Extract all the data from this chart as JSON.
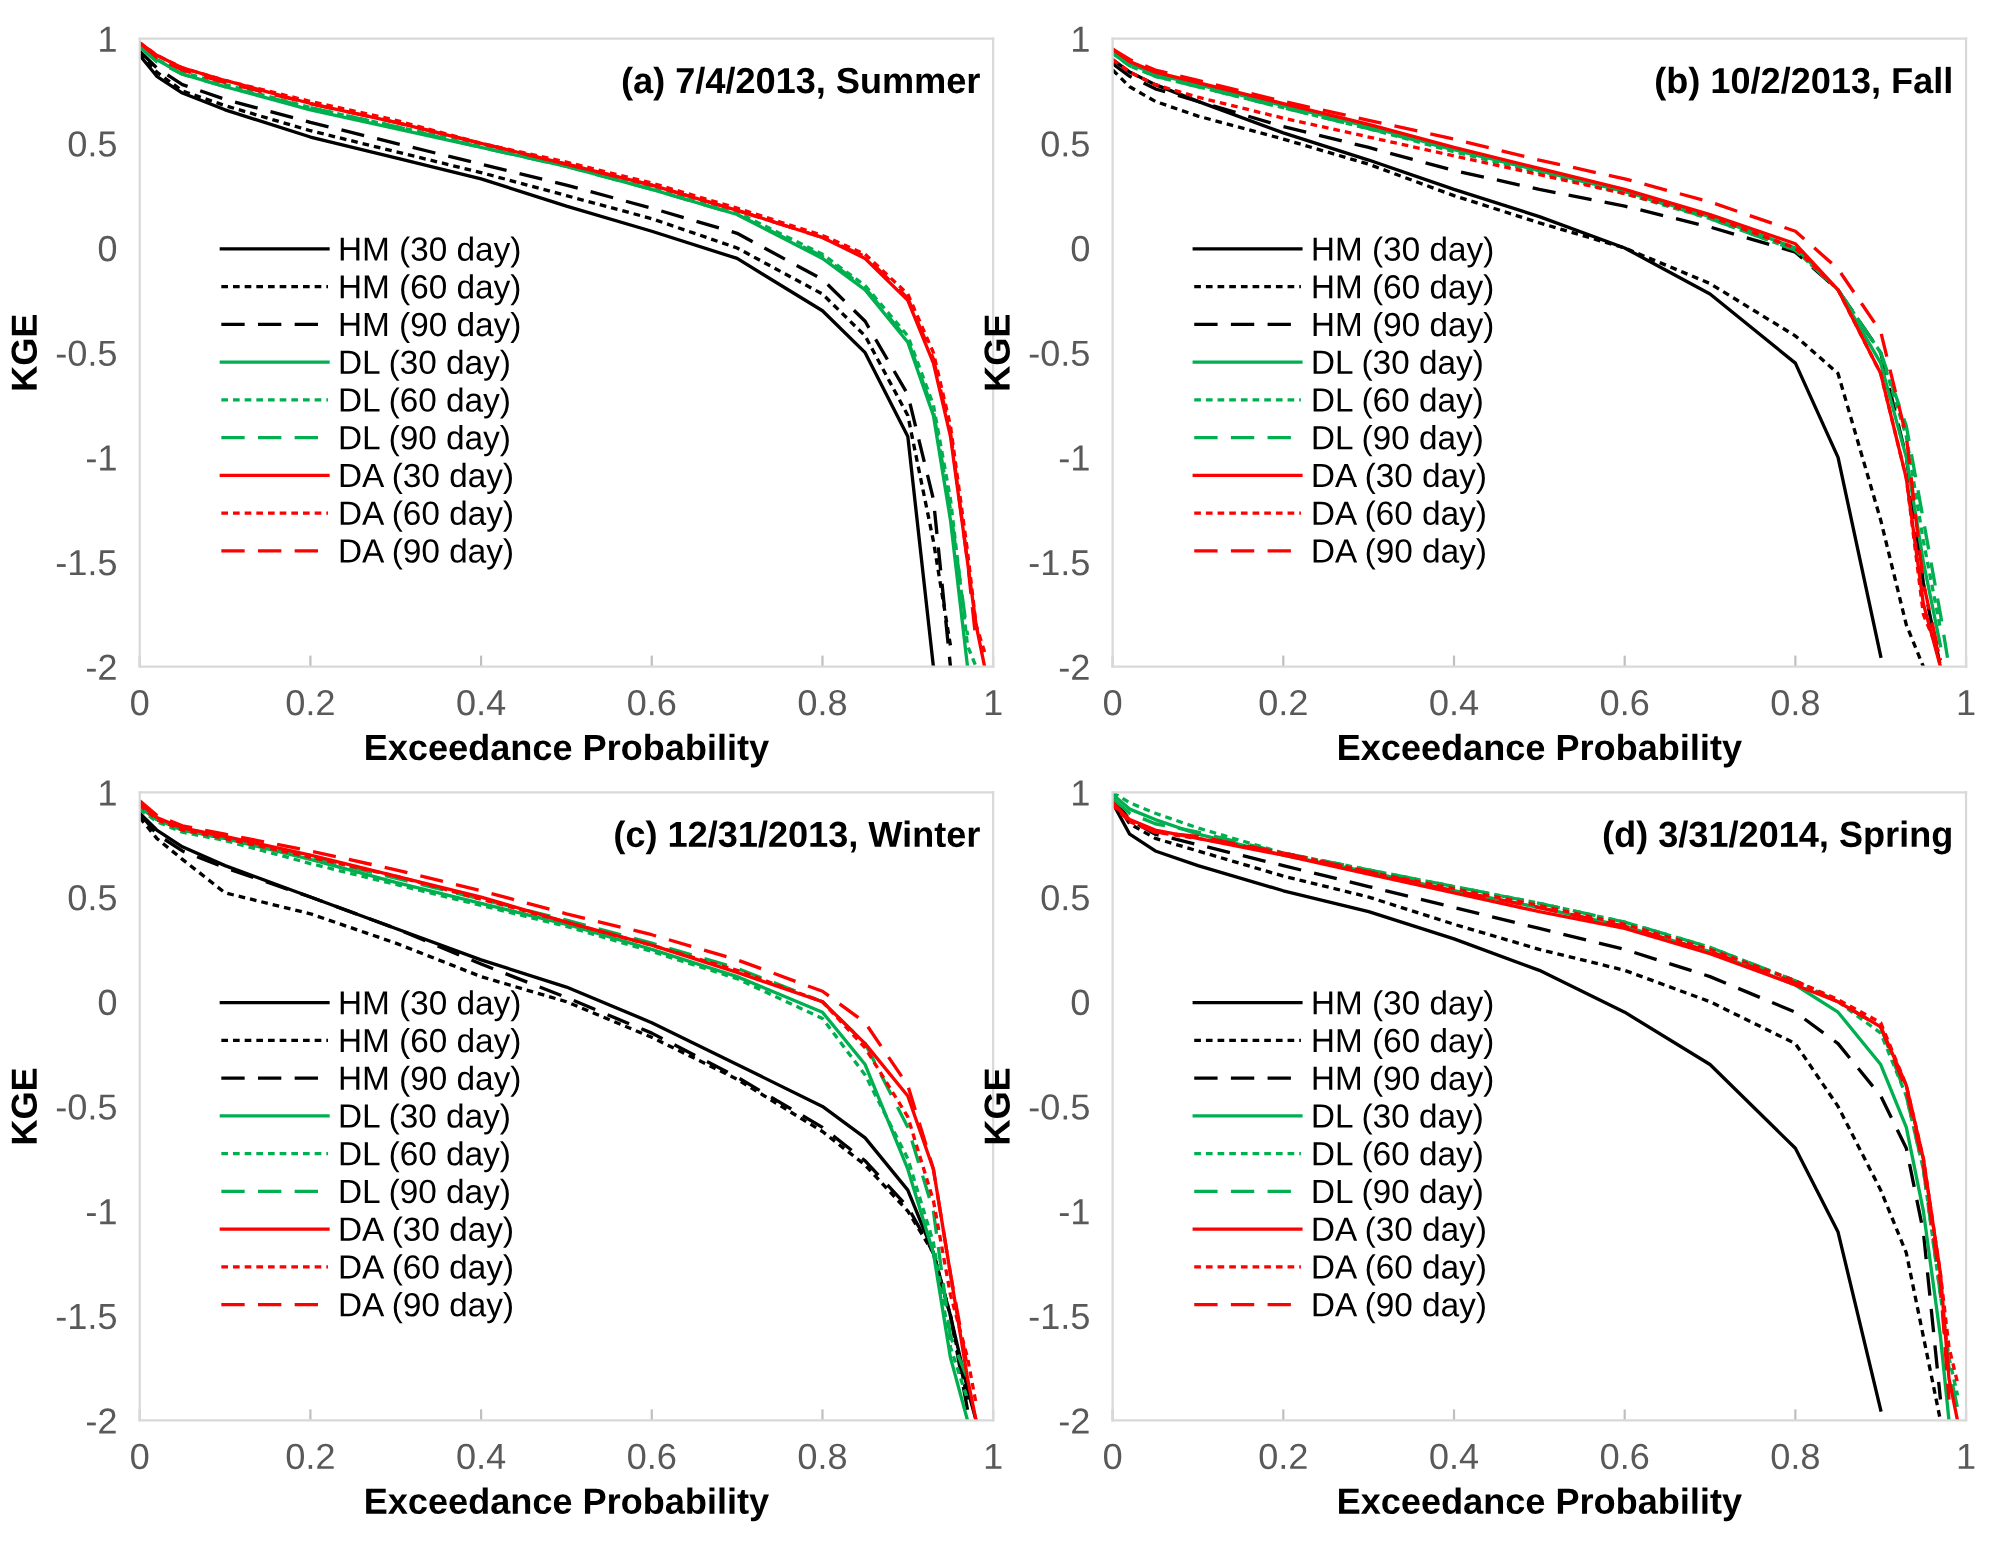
{
  "chart_data": [
    {
      "type": "line",
      "title": "(a) 7/4/2013, Summer",
      "xlabel": "Exceedance Probability",
      "ylabel": "KGE",
      "xlim": [
        0,
        1
      ],
      "ylim": [
        -2,
        1
      ],
      "xticks": [
        0,
        0.2,
        0.4,
        0.6,
        0.8,
        1
      ],
      "yticks": [
        -2,
        -1.5,
        -1,
        -0.5,
        0,
        0.5,
        1
      ],
      "legend": "left",
      "grid": false,
      "x": [
        0,
        0.02,
        0.05,
        0.1,
        0.2,
        0.3,
        0.4,
        0.5,
        0.6,
        0.7,
        0.8,
        0.85,
        0.9,
        0.93,
        0.95,
        0.97,
        0.98,
        0.99
      ],
      "series": [
        {
          "name": "HM (30 day)",
          "color": "#000000",
          "line_style": "solid",
          "values": [
            0.92,
            0.82,
            0.74,
            0.66,
            0.53,
            0.43,
            0.33,
            0.2,
            0.08,
            -0.05,
            -0.3,
            -0.5,
            -0.9,
            -2,
            null,
            null,
            null,
            null
          ]
        },
        {
          "name": "HM (60 day)",
          "color": "#000000",
          "line_style": "dotted",
          "values": [
            0.93,
            0.84,
            0.75,
            0.68,
            0.56,
            0.46,
            0.36,
            0.25,
            0.14,
            0.0,
            -0.22,
            -0.42,
            -0.8,
            -1.4,
            -1.9,
            null,
            null,
            null
          ]
        },
        {
          "name": "HM (90 day)",
          "color": "#000000",
          "line_style": "dashed",
          "values": [
            0.94,
            0.86,
            0.78,
            0.71,
            0.6,
            0.5,
            0.4,
            0.3,
            0.19,
            0.07,
            -0.15,
            -0.35,
            -0.7,
            -1.2,
            -2,
            null,
            null,
            null
          ]
        },
        {
          "name": "DL (30 day)",
          "color": "#00b050",
          "line_style": "solid",
          "values": [
            0.97,
            0.9,
            0.83,
            0.77,
            0.66,
            0.57,
            0.48,
            0.39,
            0.28,
            0.16,
            -0.05,
            -0.2,
            -0.45,
            -0.8,
            -1.3,
            -2,
            null,
            null
          ]
        },
        {
          "name": "DL (60 day)",
          "color": "#00b050",
          "line_style": "dotted",
          "values": [
            0.96,
            0.9,
            0.84,
            0.78,
            0.67,
            0.58,
            0.49,
            0.4,
            0.29,
            0.17,
            -0.03,
            -0.18,
            -0.42,
            -0.75,
            -1.2,
            -1.9,
            -2,
            null
          ]
        },
        {
          "name": "DL (90 day)",
          "color": "#00b050",
          "line_style": "dashed",
          "values": [
            0.96,
            0.89,
            0.83,
            0.77,
            0.67,
            0.58,
            0.48,
            0.39,
            0.28,
            0.16,
            -0.04,
            -0.19,
            -0.44,
            -0.78,
            -1.25,
            -1.85,
            null,
            null
          ]
        },
        {
          "name": "DA (30 day)",
          "color": "#ff0000",
          "line_style": "solid",
          "values": [
            0.98,
            0.92,
            0.86,
            0.8,
            0.69,
            0.6,
            0.5,
            0.4,
            0.3,
            0.18,
            0.05,
            -0.05,
            -0.25,
            -0.55,
            -0.9,
            -1.5,
            -1.8,
            -2
          ]
        },
        {
          "name": "DA (60 day)",
          "color": "#ff0000",
          "line_style": "dotted",
          "values": [
            0.98,
            0.92,
            0.86,
            0.8,
            0.7,
            0.61,
            0.5,
            0.41,
            0.31,
            0.19,
            0.06,
            -0.03,
            -0.22,
            -0.5,
            -0.85,
            -1.45,
            -1.8,
            -1.93
          ]
        },
        {
          "name": "DA (90 day)",
          "color": "#ff0000",
          "line_style": "dashed",
          "values": [
            0.98,
            0.91,
            0.85,
            0.79,
            0.69,
            0.6,
            0.5,
            0.4,
            0.3,
            0.18,
            0.05,
            -0.04,
            -0.24,
            -0.53,
            -0.88,
            -1.5,
            -1.88,
            null
          ]
        }
      ]
    },
    {
      "type": "line",
      "title": "(b) 10/2/2013, Fall",
      "xlabel": "Exceedance Probability",
      "ylabel": "KGE",
      "xlim": [
        0,
        1
      ],
      "ylim": [
        -2,
        1
      ],
      "xticks": [
        0,
        0.2,
        0.4,
        0.6,
        0.8,
        1
      ],
      "yticks": [
        -2,
        -1.5,
        -1,
        -0.5,
        0,
        0.5,
        1
      ],
      "legend": "left",
      "grid": false,
      "x": [
        0,
        0.02,
        0.05,
        0.1,
        0.2,
        0.3,
        0.4,
        0.5,
        0.6,
        0.7,
        0.8,
        0.85,
        0.9,
        0.93,
        0.95,
        0.97,
        0.98
      ],
      "series": [
        {
          "name": "HM (30 day)",
          "color": "#000000",
          "line_style": "solid",
          "values": [
            0.9,
            0.84,
            0.78,
            0.7,
            0.55,
            0.42,
            0.28,
            0.15,
            0.0,
            -0.22,
            -0.55,
            -1.0,
            -1.95,
            null,
            null,
            null,
            null
          ]
        },
        {
          "name": "HM (60 day)",
          "color": "#000000",
          "line_style": "dotted",
          "values": [
            0.85,
            0.77,
            0.7,
            0.63,
            0.52,
            0.4,
            0.25,
            0.12,
            0.0,
            -0.17,
            -0.42,
            -0.6,
            -1.3,
            -1.8,
            -2,
            null,
            null
          ]
        },
        {
          "name": "HM (90 day)",
          "color": "#000000",
          "line_style": "dashed",
          "values": [
            0.88,
            0.82,
            0.76,
            0.7,
            0.58,
            0.48,
            0.37,
            0.28,
            0.2,
            0.1,
            -0.02,
            -0.2,
            -0.5,
            -1.0,
            -1.6,
            -2,
            null
          ]
        },
        {
          "name": "DL (30 day)",
          "color": "#00b050",
          "line_style": "solid",
          "values": [
            0.94,
            0.88,
            0.83,
            0.78,
            0.68,
            0.58,
            0.47,
            0.37,
            0.27,
            0.15,
            0.0,
            -0.2,
            -0.55,
            -1.0,
            -1.5,
            -1.9,
            null
          ]
        },
        {
          "name": "DL (60 day)",
          "color": "#00b050",
          "line_style": "dotted",
          "values": [
            0.93,
            0.87,
            0.82,
            0.77,
            0.67,
            0.57,
            0.46,
            0.36,
            0.26,
            0.14,
            -0.01,
            -0.2,
            -0.5,
            -0.9,
            -1.4,
            -1.82,
            null
          ]
        },
        {
          "name": "DL (90 day)",
          "color": "#00b050",
          "line_style": "dashed",
          "values": [
            0.93,
            0.87,
            0.82,
            0.77,
            0.67,
            0.57,
            0.47,
            0.37,
            0.27,
            0.14,
            -0.01,
            -0.2,
            -0.5,
            -0.85,
            -1.3,
            -1.75,
            -2
          ]
        },
        {
          "name": "DA (30 day)",
          "color": "#ff0000",
          "line_style": "solid",
          "values": [
            0.95,
            0.89,
            0.84,
            0.79,
            0.69,
            0.59,
            0.48,
            0.38,
            0.28,
            0.16,
            0.02,
            -0.2,
            -0.6,
            -1.1,
            -1.7,
            -2,
            null
          ]
        },
        {
          "name": "DA (60 day)",
          "color": "#ff0000",
          "line_style": "dotted",
          "values": [
            0.9,
            0.84,
            0.78,
            0.72,
            0.62,
            0.53,
            0.44,
            0.35,
            0.26,
            0.15,
            0.0,
            -0.2,
            -0.6,
            -1.1,
            -1.75,
            -1.95,
            null
          ]
        },
        {
          "name": "DA (90 day)",
          "color": "#ff0000",
          "line_style": "dashed",
          "values": [
            0.95,
            0.9,
            0.85,
            0.8,
            0.7,
            0.61,
            0.52,
            0.42,
            0.33,
            0.22,
            0.08,
            -0.1,
            -0.4,
            -0.9,
            -1.6,
            -1.97,
            null
          ]
        }
      ]
    },
    {
      "type": "line",
      "title": "(c) 12/31/2013, Winter",
      "xlabel": "Exceedance Probability",
      "ylabel": "KGE",
      "xlim": [
        0,
        1
      ],
      "ylim": [
        -2,
        1
      ],
      "xticks": [
        0,
        0.2,
        0.4,
        0.6,
        0.8,
        1
      ],
      "yticks": [
        -2,
        -1.5,
        -1,
        -0.5,
        0,
        0.5,
        1
      ],
      "legend": "left",
      "grid": false,
      "x": [
        0,
        0.02,
        0.05,
        0.1,
        0.2,
        0.3,
        0.4,
        0.5,
        0.6,
        0.7,
        0.8,
        0.85,
        0.9,
        0.93,
        0.95,
        0.97,
        0.98
      ],
      "series": [
        {
          "name": "HM (30 day)",
          "color": "#000000",
          "line_style": "solid",
          "values": [
            0.9,
            0.82,
            0.74,
            0.65,
            0.5,
            0.35,
            0.2,
            0.07,
            -0.1,
            -0.3,
            -0.5,
            -0.65,
            -0.9,
            -1.2,
            -1.5,
            -1.85,
            -2
          ]
        },
        {
          "name": "HM (60 day)",
          "color": "#000000",
          "line_style": "dotted",
          "values": [
            0.88,
            0.78,
            0.68,
            0.52,
            0.42,
            0.28,
            0.12,
            0.0,
            -0.17,
            -0.37,
            -0.62,
            -0.78,
            -1.0,
            -1.2,
            -1.5,
            -1.9,
            null
          ]
        },
        {
          "name": "HM (90 day)",
          "color": "#000000",
          "line_style": "dashed",
          "values": [
            0.9,
            0.8,
            0.72,
            0.64,
            0.5,
            0.35,
            0.18,
            0.02,
            -0.15,
            -0.36,
            -0.6,
            -0.76,
            -0.98,
            -1.2,
            -1.5,
            -1.95,
            null
          ]
        },
        {
          "name": "DL (30 day)",
          "color": "#00b050",
          "line_style": "solid",
          "values": [
            0.93,
            0.87,
            0.82,
            0.78,
            0.68,
            0.57,
            0.47,
            0.37,
            0.25,
            0.12,
            -0.05,
            -0.3,
            -0.8,
            -1.2,
            -1.7,
            -2,
            null
          ]
        },
        {
          "name": "DL (60 day)",
          "color": "#00b050",
          "line_style": "dotted",
          "values": [
            0.92,
            0.86,
            0.81,
            0.77,
            0.66,
            0.56,
            0.46,
            0.36,
            0.24,
            0.11,
            -0.08,
            -0.35,
            -0.75,
            -1.15,
            -1.65,
            -1.9,
            null
          ]
        },
        {
          "name": "DL (90 day)",
          "color": "#00b050",
          "line_style": "dashed",
          "values": [
            0.93,
            0.87,
            0.82,
            0.78,
            0.69,
            0.59,
            0.49,
            0.39,
            0.28,
            0.16,
            0.0,
            -0.2,
            -0.6,
            -1.0,
            -1.6,
            -1.8,
            null
          ]
        },
        {
          "name": "DA (30 day)",
          "color": "#ff0000",
          "line_style": "solid",
          "values": [
            0.95,
            0.88,
            0.83,
            0.79,
            0.7,
            0.6,
            0.5,
            0.38,
            0.27,
            0.14,
            0.0,
            -0.2,
            -0.45,
            -0.8,
            -1.3,
            -1.8,
            -2
          ]
        },
        {
          "name": "DA (60 day)",
          "color": "#ff0000",
          "line_style": "dotted",
          "values": [
            0.94,
            0.87,
            0.82,
            0.78,
            0.69,
            0.6,
            0.49,
            0.38,
            0.27,
            0.15,
            0.0,
            -0.22,
            -0.55,
            -0.95,
            -1.4,
            -1.7,
            -1.92
          ]
        },
        {
          "name": "DA (90 day)",
          "color": "#ff0000",
          "line_style": "dashed",
          "values": [
            0.96,
            0.89,
            0.84,
            0.8,
            0.72,
            0.63,
            0.53,
            0.42,
            0.32,
            0.2,
            0.05,
            -0.1,
            -0.4,
            -0.8,
            -1.3,
            -1.75,
            null
          ]
        }
      ]
    },
    {
      "type": "line",
      "title": "(d) 3/31/2014, Spring",
      "xlabel": "Exceedance Probability",
      "ylabel": "KGE",
      "xlim": [
        0,
        1
      ],
      "ylim": [
        -2,
        1
      ],
      "xticks": [
        0,
        0.2,
        0.4,
        0.6,
        0.8,
        1
      ],
      "yticks": [
        -2,
        -1.5,
        -1,
        -0.5,
        0,
        0.5,
        1
      ],
      "legend": "left",
      "grid": false,
      "x": [
        0,
        0.02,
        0.05,
        0.1,
        0.2,
        0.3,
        0.4,
        0.5,
        0.6,
        0.7,
        0.8,
        0.85,
        0.9,
        0.93,
        0.95,
        0.97,
        0.98,
        0.99
      ],
      "series": [
        {
          "name": "HM (30 day)",
          "color": "#000000",
          "line_style": "solid",
          "values": [
            0.95,
            0.8,
            0.72,
            0.65,
            0.53,
            0.43,
            0.3,
            0.15,
            -0.05,
            -0.3,
            -0.7,
            -1.1,
            -1.95,
            null,
            null,
            null,
            null,
            null
          ]
        },
        {
          "name": "HM (60 day)",
          "color": "#000000",
          "line_style": "dotted",
          "values": [
            0.97,
            0.85,
            0.78,
            0.72,
            0.6,
            0.5,
            0.37,
            0.25,
            0.15,
            0.0,
            -0.2,
            -0.5,
            -0.9,
            -1.2,
            -1.6,
            -2,
            null,
            null
          ]
        },
        {
          "name": "HM (90 day)",
          "color": "#000000",
          "line_style": "dashed",
          "values": [
            0.97,
            0.87,
            0.8,
            0.75,
            0.65,
            0.55,
            0.45,
            0.35,
            0.25,
            0.12,
            -0.05,
            -0.2,
            -0.45,
            -0.7,
            -1.1,
            -1.9,
            null,
            null
          ]
        },
        {
          "name": "DL (30 day)",
          "color": "#00b050",
          "line_style": "solid",
          "values": [
            0.99,
            0.92,
            0.87,
            0.8,
            0.7,
            0.62,
            0.53,
            0.45,
            0.36,
            0.24,
            0.08,
            -0.05,
            -0.3,
            -0.6,
            -1.0,
            -1.6,
            -2,
            null
          ]
        },
        {
          "name": "DL (60 day)",
          "color": "#00b050",
          "line_style": "dotted",
          "values": [
            1.0,
            0.95,
            0.9,
            0.83,
            0.71,
            0.63,
            0.55,
            0.47,
            0.38,
            0.26,
            0.1,
            0.0,
            -0.15,
            -0.45,
            -0.8,
            -1.4,
            -1.7,
            -1.88
          ]
        },
        {
          "name": "DL (90 day)",
          "color": "#00b050",
          "line_style": "dashed",
          "values": [
            0.97,
            0.9,
            0.85,
            0.81,
            0.71,
            0.63,
            0.55,
            0.47,
            0.38,
            0.26,
            0.1,
            0.0,
            -0.12,
            -0.45,
            -0.8,
            -1.4,
            -1.75,
            -1.94
          ]
        },
        {
          "name": "DA (30 day)",
          "color": "#ff0000",
          "line_style": "solid",
          "values": [
            0.95,
            0.87,
            0.82,
            0.78,
            0.7,
            0.61,
            0.52,
            0.43,
            0.35,
            0.23,
            0.08,
            0.0,
            -0.12,
            -0.4,
            -0.75,
            -1.3,
            -1.8,
            -2
          ]
        },
        {
          "name": "DA (60 day)",
          "color": "#ff0000",
          "line_style": "dotted",
          "values": [
            0.94,
            0.86,
            0.81,
            0.78,
            0.71,
            0.62,
            0.54,
            0.46,
            0.37,
            0.25,
            0.1,
            0.01,
            -0.1,
            -0.4,
            -0.75,
            -1.3,
            -1.65,
            -1.82
          ]
        },
        {
          "name": "DA (90 day)",
          "color": "#ff0000",
          "line_style": "dashed",
          "values": [
            0.95,
            0.86,
            0.81,
            0.79,
            0.71,
            0.62,
            0.53,
            0.45,
            0.36,
            0.24,
            0.09,
            0.0,
            -0.12,
            -0.42,
            -0.78,
            -1.35,
            -1.9,
            null
          ]
        }
      ]
    }
  ]
}
